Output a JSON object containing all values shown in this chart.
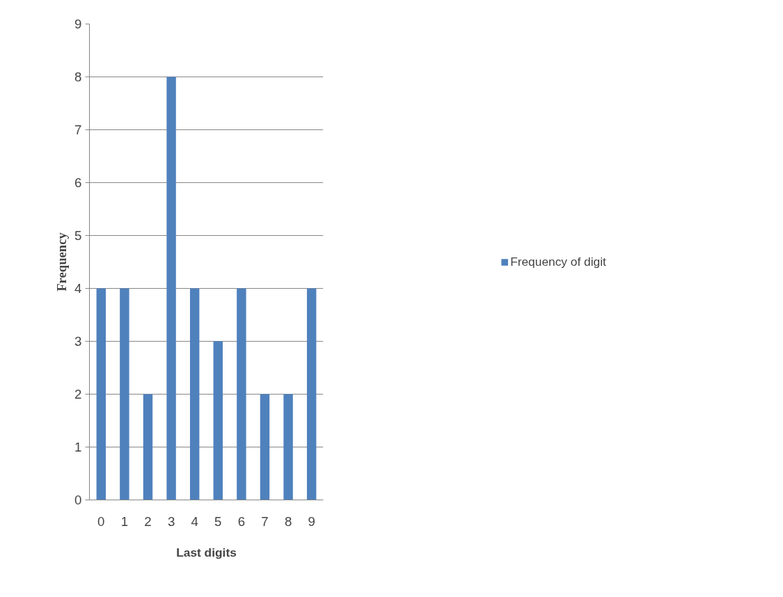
{
  "chart_data": {
    "type": "bar",
    "xlabel": "Last digits",
    "ylabel": "Frequency",
    "categories": [
      "0",
      "1",
      "2",
      "3",
      "4",
      "5",
      "6",
      "7",
      "8",
      "9"
    ],
    "series": [
      {
        "name": "Frequency of digit",
        "color": "#4f81bd",
        "values": [
          4,
          4,
          2,
          8,
          4,
          3,
          4,
          2,
          2,
          4
        ]
      }
    ],
    "ylim": [
      0,
      9
    ],
    "yticks": [
      0,
      1,
      2,
      3,
      4,
      5,
      6,
      7,
      8,
      9
    ],
    "grid": "y",
    "legend": "right"
  }
}
